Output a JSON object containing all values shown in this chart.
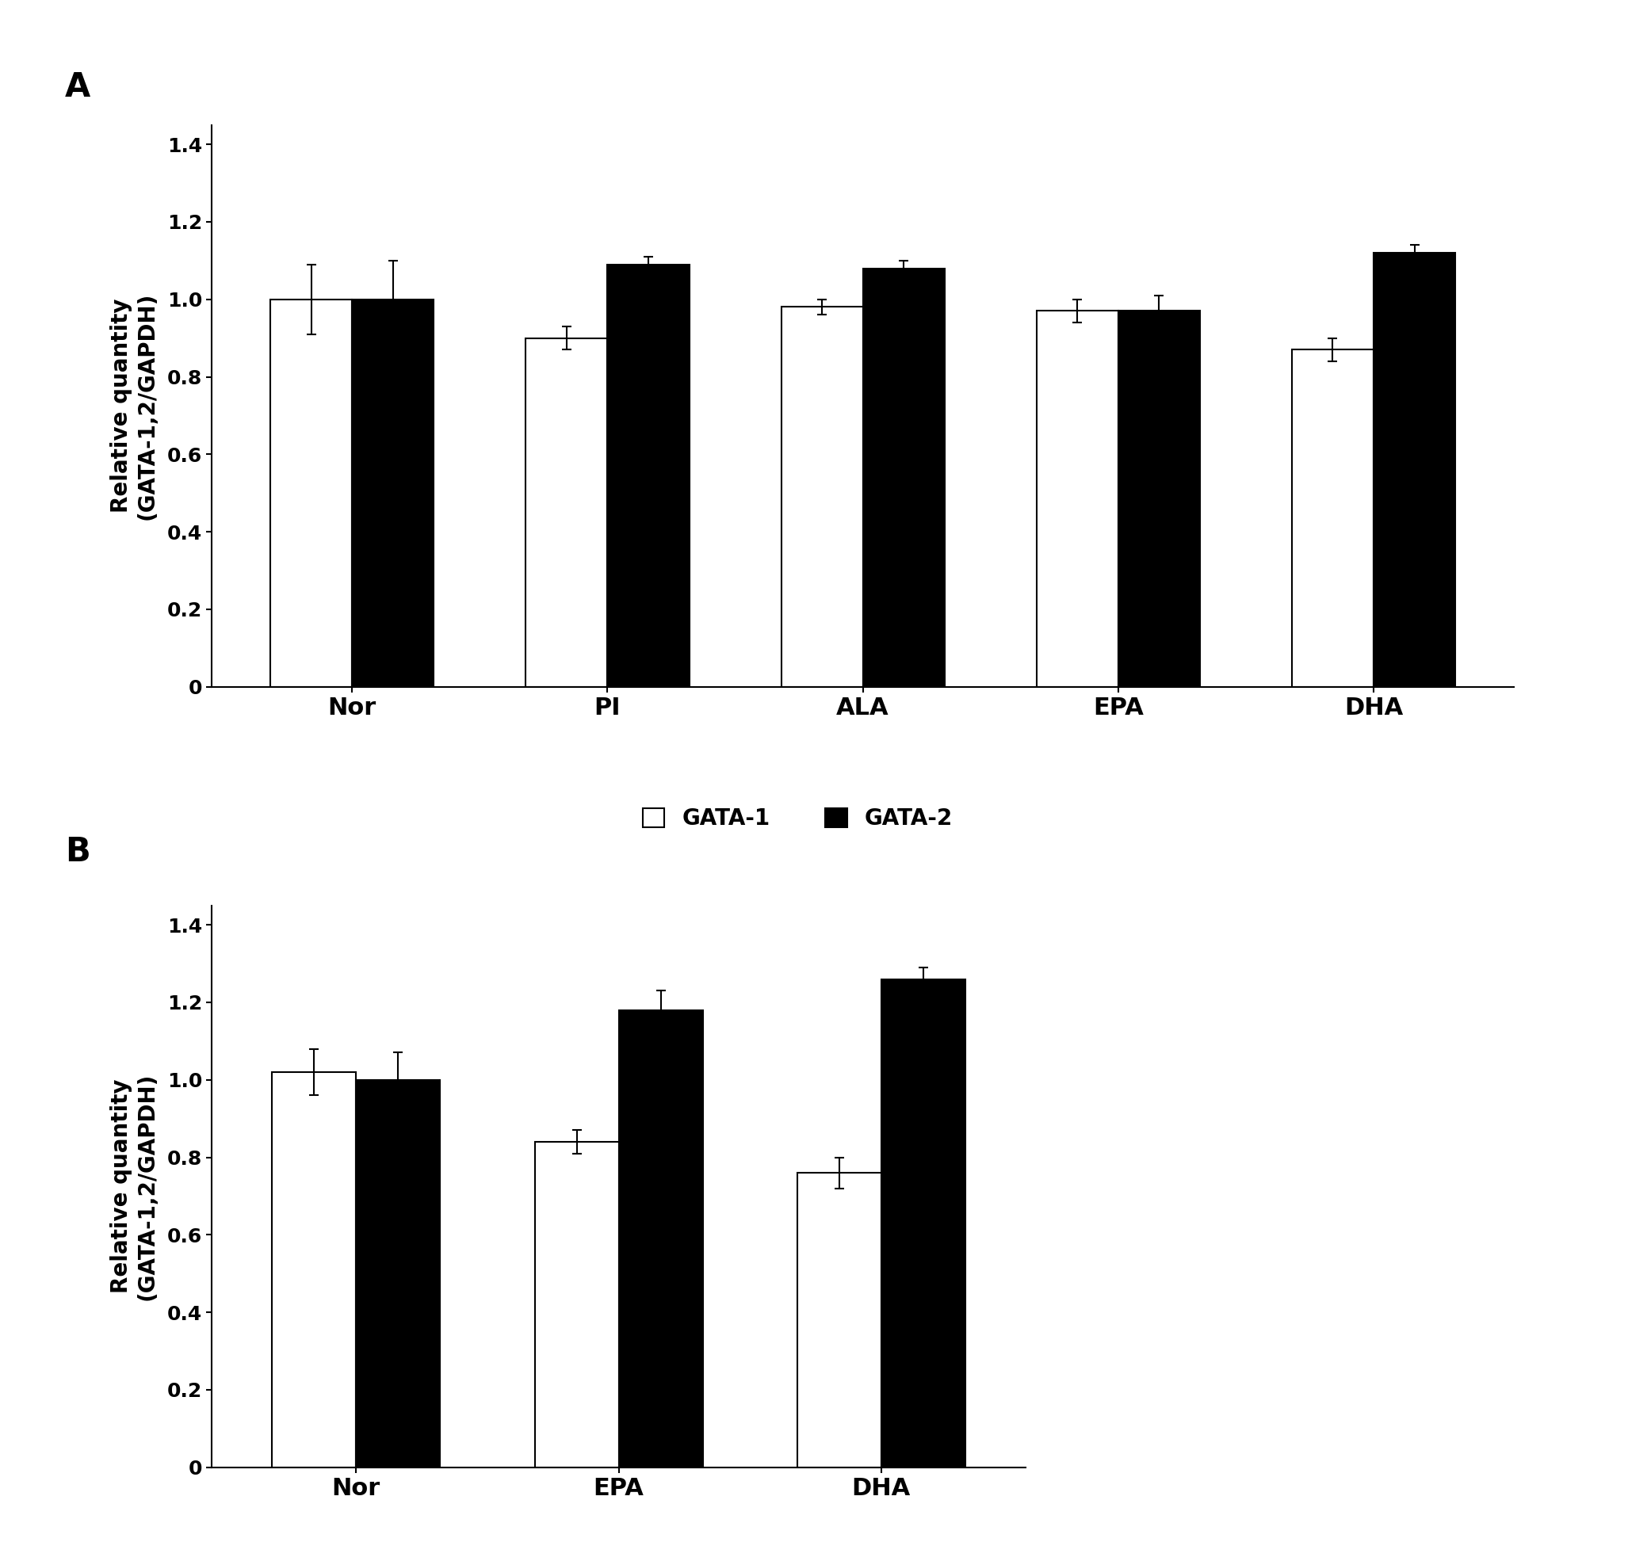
{
  "panel_A": {
    "categories": [
      "Nor",
      "PI",
      "ALA",
      "EPA",
      "DHA"
    ],
    "gata1_values": [
      1.0,
      0.9,
      0.98,
      0.97,
      0.87
    ],
    "gata2_values": [
      1.0,
      1.09,
      1.08,
      0.97,
      1.12
    ],
    "gata1_errors": [
      0.09,
      0.03,
      0.02,
      0.03,
      0.03
    ],
    "gata2_errors": [
      0.1,
      0.02,
      0.02,
      0.04,
      0.02
    ],
    "ylabel": "Relative quantity\n(GATA-1,2/GAPDH)",
    "ylim": [
      0,
      1.45
    ],
    "yticks": [
      0,
      0.2,
      0.4,
      0.6,
      0.8,
      1.0,
      1.2,
      1.4
    ],
    "panel_label": "A"
  },
  "panel_B": {
    "categories": [
      "Nor",
      "EPA",
      "DHA"
    ],
    "gata1_values": [
      1.02,
      0.84,
      0.76
    ],
    "gata2_values": [
      1.0,
      1.18,
      1.26
    ],
    "gata1_errors": [
      0.06,
      0.03,
      0.04
    ],
    "gata2_errors": [
      0.07,
      0.05,
      0.03
    ],
    "ylabel": "Relative quantity\n(GATA-1,2/GAPDH)",
    "ylim": [
      0,
      1.45
    ],
    "yticks": [
      0,
      0.2,
      0.4,
      0.6,
      0.8,
      1.0,
      1.2,
      1.4
    ],
    "panel_label": "B"
  },
  "legend_labels": [
    "GATA-1",
    "GATA-2"
  ],
  "bar_width": 0.32,
  "gata1_color": "#ffffff",
  "gata2_color": "#000000",
  "edge_color": "#000000",
  "background_color": "#ffffff",
  "font_size_label": 20,
  "font_size_tick": 18,
  "font_size_panel": 30,
  "font_size_legend": 20,
  "font_size_xlabel": 22
}
